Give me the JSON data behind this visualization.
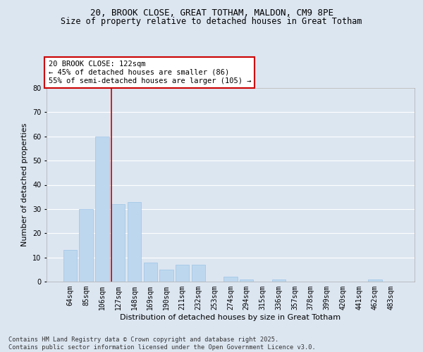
{
  "title_line1": "20, BROOK CLOSE, GREAT TOTHAM, MALDON, CM9 8PE",
  "title_line2": "Size of property relative to detached houses in Great Totham",
  "xlabel": "Distribution of detached houses by size in Great Totham",
  "ylabel": "Number of detached properties",
  "categories": [
    "64sqm",
    "85sqm",
    "106sqm",
    "127sqm",
    "148sqm",
    "169sqm",
    "190sqm",
    "211sqm",
    "232sqm",
    "253sqm",
    "274sqm",
    "294sqm",
    "315sqm",
    "336sqm",
    "357sqm",
    "378sqm",
    "399sqm",
    "420sqm",
    "441sqm",
    "462sqm",
    "483sqm"
  ],
  "values": [
    13,
    30,
    60,
    32,
    33,
    8,
    5,
    7,
    7,
    0,
    2,
    1,
    0,
    1,
    0,
    0,
    0,
    0,
    0,
    1,
    0
  ],
  "bar_color": "#bdd7ee",
  "bar_edge_color": "#9dc3e6",
  "background_color": "#dce6f1",
  "plot_bg_color": "#dce6f1",
  "red_line_index": 3,
  "red_line_color": "#cc0000",
  "annotation_text": "20 BROOK CLOSE: 122sqm\n← 45% of detached houses are smaller (86)\n55% of semi-detached houses are larger (105) →",
  "annotation_box_color": "#cc0000",
  "ylim": [
    0,
    80
  ],
  "yticks": [
    0,
    10,
    20,
    30,
    40,
    50,
    60,
    70,
    80
  ],
  "footer_text": "Contains HM Land Registry data © Crown copyright and database right 2025.\nContains public sector information licensed under the Open Government Licence v3.0.",
  "title_fontsize": 9,
  "subtitle_fontsize": 8.5,
  "axis_label_fontsize": 8,
  "tick_fontsize": 7,
  "annotation_fontsize": 7.5
}
